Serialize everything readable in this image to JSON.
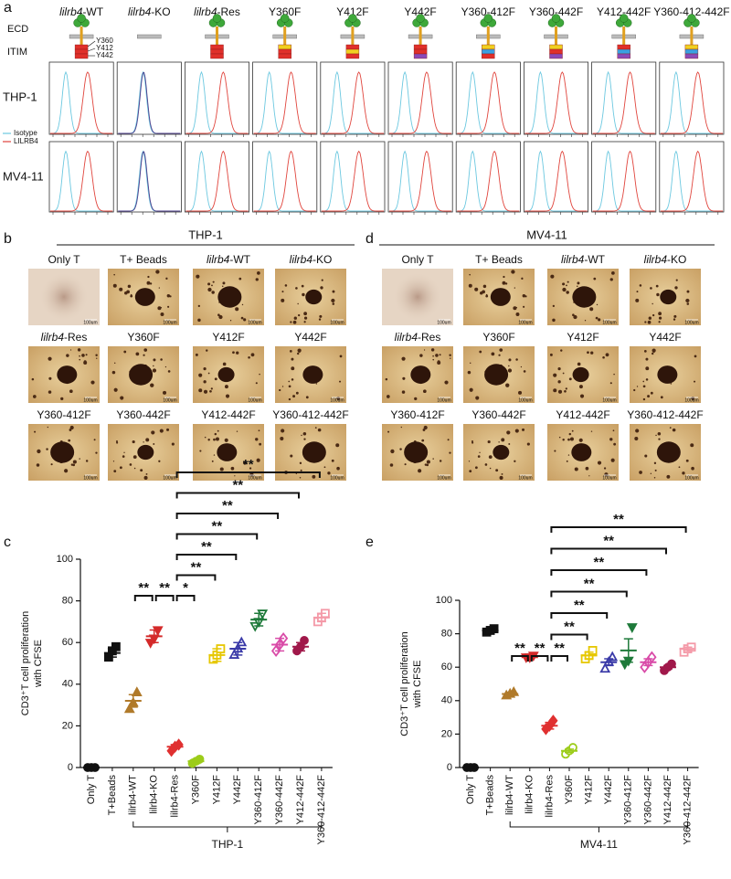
{
  "panel_a": {
    "letter": "a",
    "columns": [
      {
        "italic": "lilrb4",
        "text": "-WT"
      },
      {
        "italic": "lilrb4",
        "text": "-KO"
      },
      {
        "italic": "lilrb4",
        "text": "-Res"
      },
      {
        "text": "Y360F"
      },
      {
        "text": "Y412F"
      },
      {
        "text": "Y442F"
      },
      {
        "text": "Y360-412F"
      },
      {
        "text": "Y360-442F"
      },
      {
        "text": "Y412-442F"
      },
      {
        "text": "Y360-412-442F"
      }
    ],
    "itim_colors": [
      [
        "#e0302a",
        "#e0302a",
        "#e0302a"
      ],
      null,
      [
        "#e0302a",
        "#e0302a",
        "#e0302a"
      ],
      [
        "#f0d020",
        "#e0302a",
        "#e0302a"
      ],
      [
        "#e0302a",
        "#f0d020",
        "#e0302a"
      ],
      [
        "#e0302a",
        "#e0302a",
        "#8a4ab8"
      ],
      [
        "#f0d020",
        "#3aa0e0",
        "#e0302a"
      ],
      [
        "#f0d020",
        "#e0302a",
        "#8a4ab8"
      ],
      [
        "#e0302a",
        "#3aa0e0",
        "#8a4ab8"
      ],
      [
        "#f0d020",
        "#3aa0e0",
        "#8a4ab8"
      ]
    ],
    "domains": [
      "ECD",
      "ITIM"
    ],
    "residues": [
      "Y360",
      "Y412",
      "Y442"
    ],
    "rows": [
      "THP-1",
      "MV4-11"
    ],
    "legend": [
      {
        "name": "Isotype",
        "color": "#6cc8e0"
      },
      {
        "name": "LILRB4",
        "color": "#e0443c"
      }
    ]
  },
  "panel_b": {
    "letter": "b",
    "cell_line": "THP-1",
    "scale_bar": "100um",
    "labels": [
      {
        "text": "Only T"
      },
      {
        "text": "T+ Beads"
      },
      {
        "italic": "lilrb4",
        "text": "-WT"
      },
      {
        "italic": "lilrb4",
        "text": "-KO"
      },
      {
        "italic": "lilrb4",
        "text": "-Res"
      },
      {
        "text": "Y360F"
      },
      {
        "text": "Y412F"
      },
      {
        "text": "Y442F"
      },
      {
        "text": "Y360-412F"
      },
      {
        "text": "Y360-442F"
      },
      {
        "text": "Y412-442F"
      },
      {
        "text": "Y360-412-442F"
      }
    ]
  },
  "panel_d": {
    "letter": "d",
    "cell_line": "MV4-11",
    "scale_bar": "100um",
    "labels": [
      {
        "text": "Only T"
      },
      {
        "text": "T+ Beads"
      },
      {
        "italic": "lilrb4",
        "text": "-WT"
      },
      {
        "italic": "lilrb4",
        "text": "-KO"
      },
      {
        "italic": "lilrb4",
        "text": "-Res"
      },
      {
        "text": "Y360F"
      },
      {
        "text": "Y412F"
      },
      {
        "text": "Y442F"
      },
      {
        "text": "Y360-412F"
      },
      {
        "text": "Y360-442F"
      },
      {
        "text": "Y412-442F"
      },
      {
        "text": "Y360-412-442F"
      }
    ]
  },
  "chart_data": [
    {
      "type": "dot",
      "panel_label": "c",
      "ylabel": [
        "CD3⁺T cell proliferation",
        "with CFSE"
      ],
      "categories": [
        "Only T",
        "T+Beads",
        "lilrb4-WT",
        "lilrb4-KO",
        "lilrb4-Res",
        "Y360F",
        "Y412F",
        "Y442F",
        "Y360-412F",
        "Y360-442F",
        "Y412-442F",
        "Y360-412-442F"
      ],
      "points": [
        [
          0,
          0,
          0
        ],
        [
          53,
          56,
          58
        ],
        [
          28,
          31,
          36
        ],
        [
          60,
          62,
          66
        ],
        [
          8,
          10,
          11
        ],
        [
          2,
          3,
          4
        ],
        [
          52,
          54,
          57
        ],
        [
          54,
          57,
          60
        ],
        [
          68,
          70,
          74
        ],
        [
          56,
          59,
          62
        ],
        [
          56,
          58,
          61
        ],
        [
          70,
          72,
          74
        ]
      ],
      "means": [
        0,
        55,
        32,
        63,
        10,
        3,
        54,
        57,
        71,
        59,
        58,
        72
      ],
      "errors": [
        0.3,
        2,
        3,
        3,
        1,
        1,
        3,
        3,
        3,
        3,
        2,
        2
      ],
      "colors": [
        "#111111",
        "#111111",
        "#b07a2a",
        "#d42a2a",
        "#e03030",
        "#9ccc1a",
        "#e6c700",
        "#3a3aa8",
        "#1e7a3a",
        "#d94ca8",
        "#a0184a",
        "#f49aa8"
      ],
      "markers": [
        "circle",
        "square",
        "triangle",
        "triangle-down",
        "diamond",
        "circle",
        "square",
        "triangle",
        "triangle-down",
        "diamond",
        "circle",
        "square"
      ],
      "filled": [
        true,
        true,
        true,
        true,
        true,
        true,
        false,
        false,
        false,
        false,
        true,
        false
      ],
      "ylim": [
        0,
        100
      ],
      "yticks": [
        0,
        20,
        40,
        60,
        80,
        100
      ],
      "comparisons": [
        {
          "pair": [
            2,
            3
          ],
          "label": "**"
        },
        {
          "pair": [
            3,
            4
          ],
          "label": "**"
        },
        {
          "pair": [
            4,
            5
          ],
          "label": "*"
        },
        {
          "pair": [
            4,
            6
          ],
          "label": "**"
        },
        {
          "pair": [
            4,
            7
          ],
          "label": "**"
        },
        {
          "pair": [
            4,
            8
          ],
          "label": "**"
        },
        {
          "pair": [
            4,
            9
          ],
          "label": "**"
        },
        {
          "pair": [
            4,
            10
          ],
          "label": "**"
        },
        {
          "pair": [
            4,
            11
          ],
          "label": "**"
        }
      ],
      "group_label": "THP-1"
    },
    {
      "type": "dot",
      "panel_label": "e",
      "ylabel": [
        "CD3⁺T cell proliferation",
        "with CFSE"
      ],
      "categories": [
        "Only T",
        "T+Beads",
        "lilrb4-WT",
        "lilrb4-KO",
        "lilrb4-Res",
        "Y360F",
        "Y412F",
        "Y442F",
        "Y360-412F",
        "Y360-442F",
        "Y412-442F",
        "Y360-412-442F"
      ],
      "points": [
        [
          0,
          0,
          0
        ],
        [
          81,
          82,
          83
        ],
        [
          43,
          44,
          45
        ],
        [
          66,
          66,
          67
        ],
        [
          23,
          25,
          28
        ],
        [
          8,
          10,
          12
        ],
        [
          65,
          67,
          70
        ],
        [
          59,
          63,
          66
        ],
        [
          62,
          64,
          84
        ],
        [
          60,
          63,
          66
        ],
        [
          58,
          60,
          62
        ],
        [
          69,
          71,
          72
        ]
      ],
      "means": [
        0,
        82,
        44,
        66,
        25,
        10,
        67,
        63,
        70,
        63,
        60,
        71
      ],
      "errors": [
        0.3,
        1,
        1,
        0.5,
        2,
        1,
        2,
        2,
        7,
        2,
        1,
        1
      ],
      "colors": [
        "#111111",
        "#111111",
        "#b07a2a",
        "#d42a2a",
        "#e03030",
        "#9ccc1a",
        "#e6c700",
        "#3a3aa8",
        "#1e7a3a",
        "#d94ca8",
        "#a0184a",
        "#f49aa8"
      ],
      "markers": [
        "circle",
        "square",
        "triangle",
        "triangle-down",
        "diamond",
        "circle",
        "square",
        "triangle",
        "triangle-down",
        "diamond",
        "circle",
        "square"
      ],
      "filled": [
        true,
        true,
        true,
        true,
        true,
        false,
        false,
        false,
        true,
        false,
        true,
        false
      ],
      "ylim": [
        0,
        100
      ],
      "yticks": [
        0,
        20,
        40,
        60,
        80,
        100
      ],
      "comparisons": [
        {
          "pair": [
            2,
            3
          ],
          "label": "**"
        },
        {
          "pair": [
            3,
            4
          ],
          "label": "**"
        },
        {
          "pair": [
            4,
            5
          ],
          "label": "**"
        },
        {
          "pair": [
            4,
            6
          ],
          "label": "**"
        },
        {
          "pair": [
            4,
            7
          ],
          "label": "**"
        },
        {
          "pair": [
            4,
            8
          ],
          "label": "**"
        },
        {
          "pair": [
            4,
            9
          ],
          "label": "**"
        },
        {
          "pair": [
            4,
            10
          ],
          "label": "**"
        },
        {
          "pair": [
            4,
            11
          ],
          "label": "**"
        }
      ],
      "group_label": "MV4-11"
    }
  ]
}
